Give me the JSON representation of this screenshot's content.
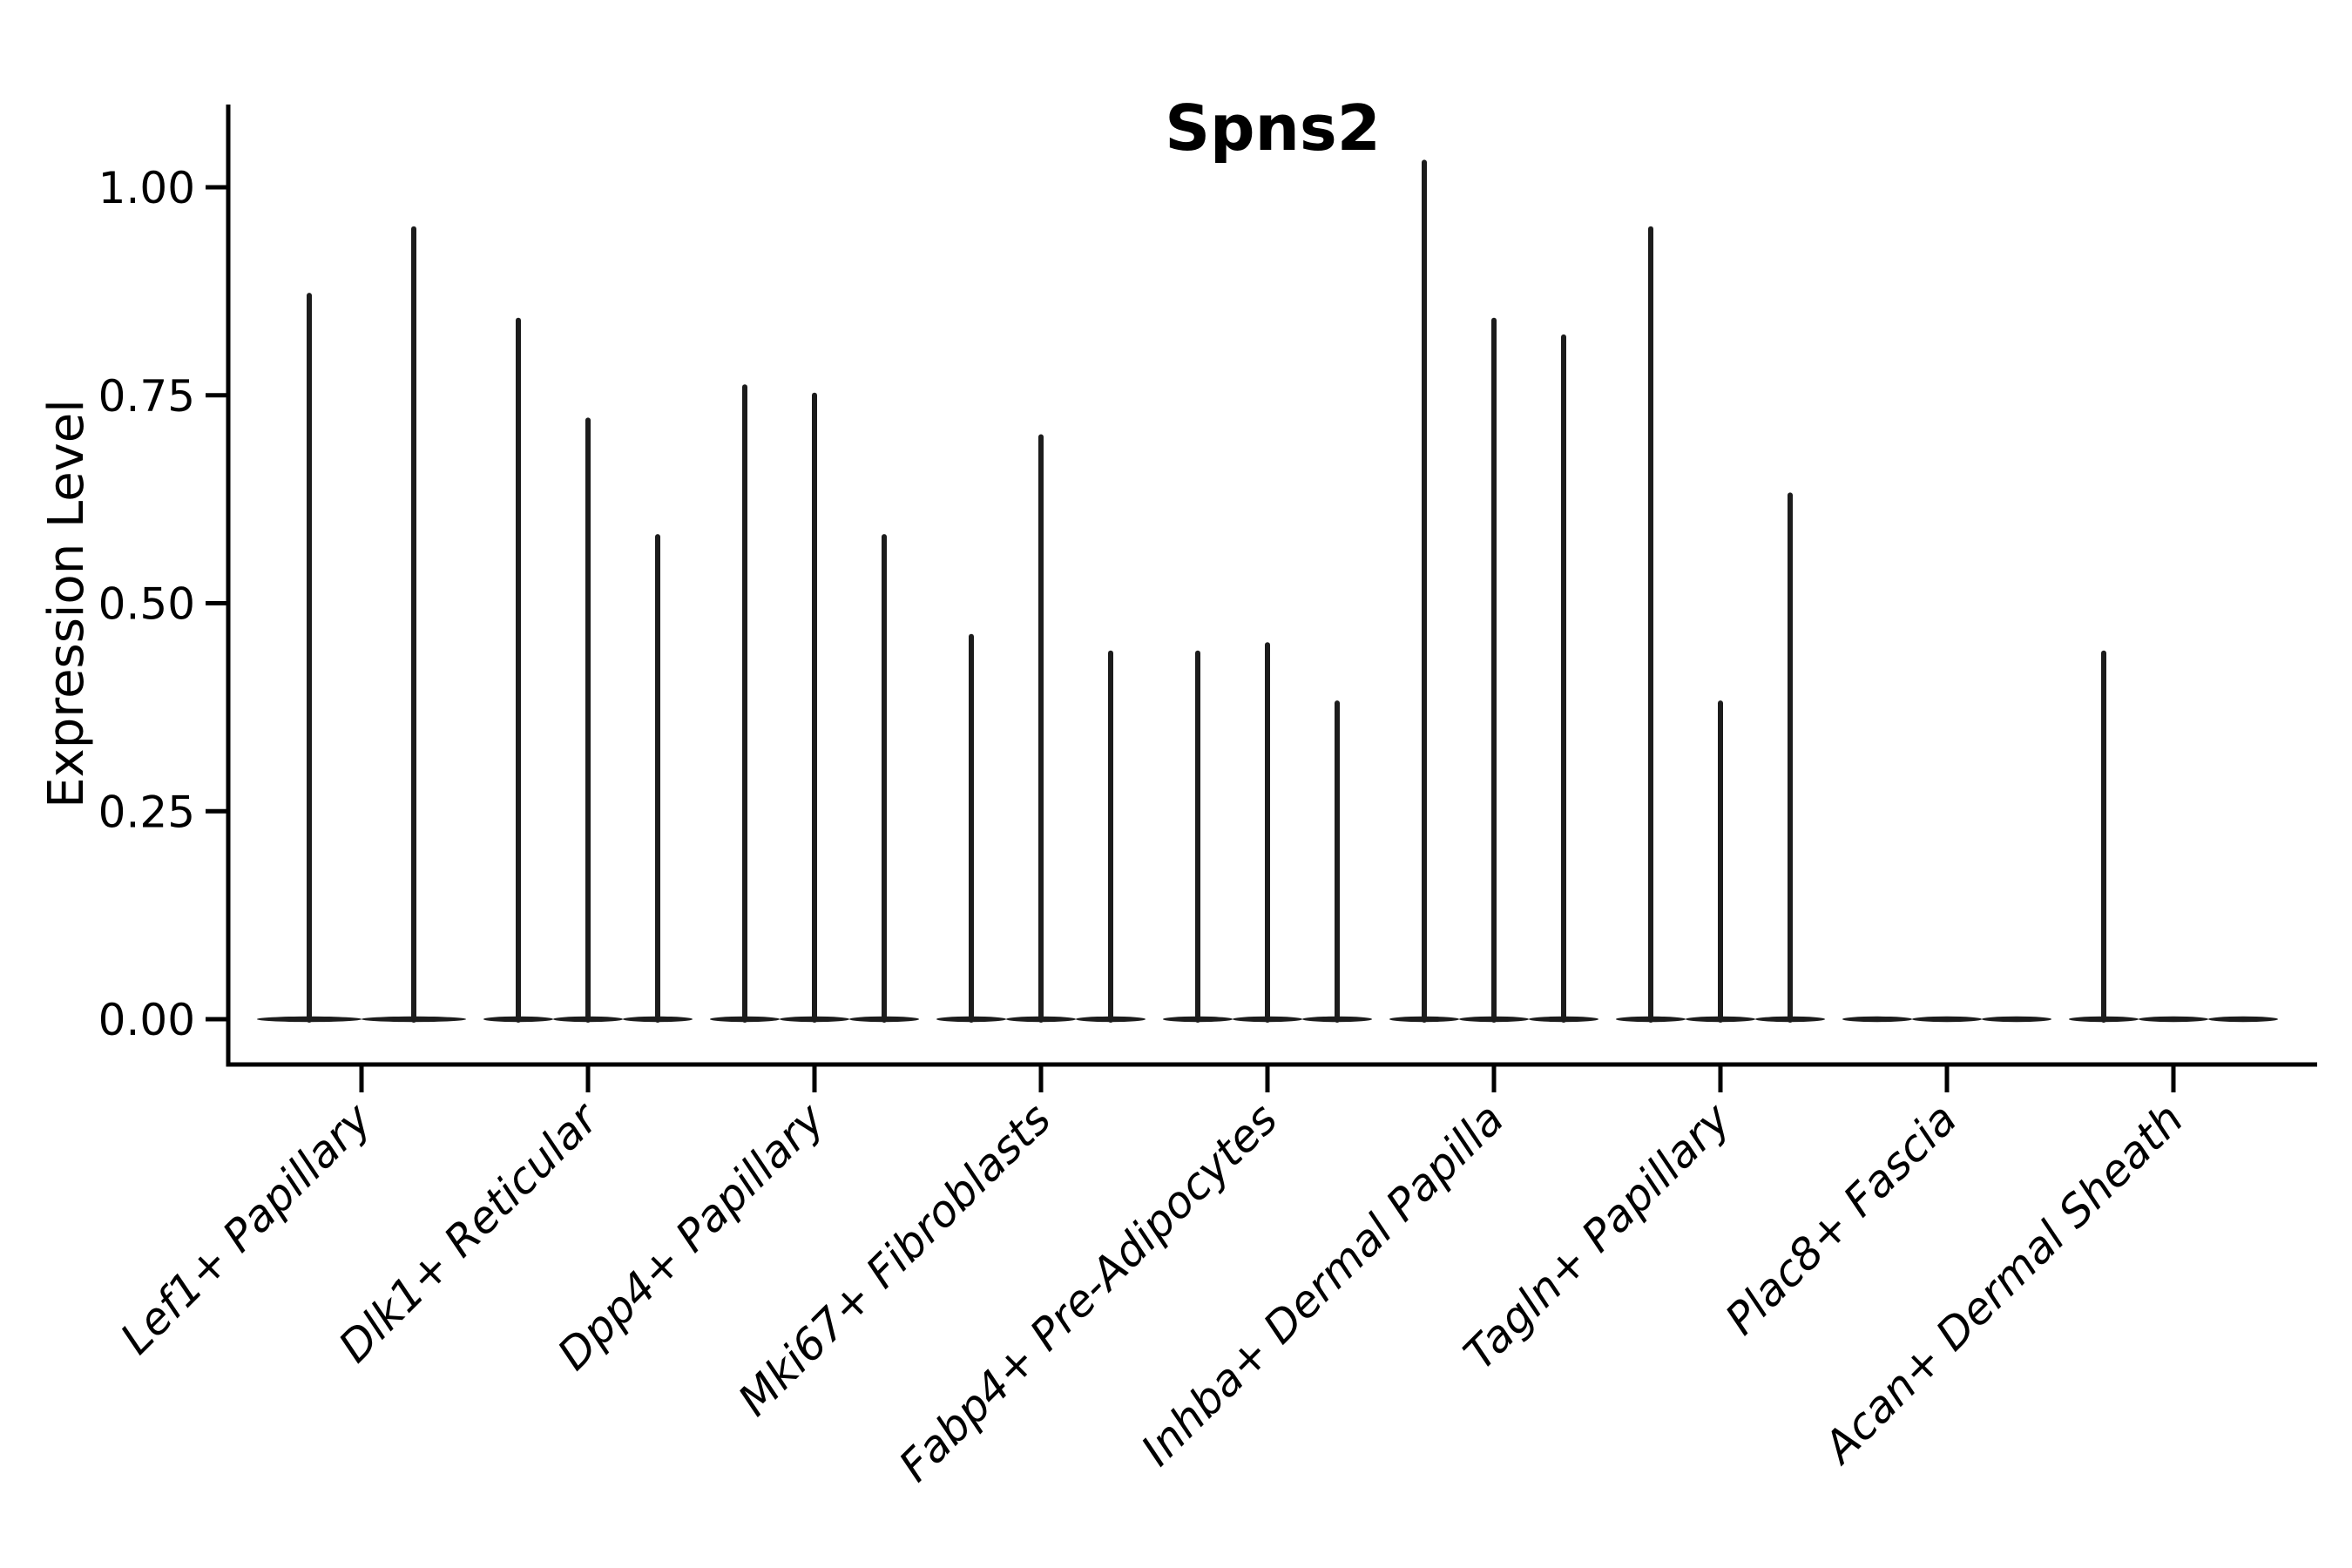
{
  "chart_data": {
    "type": "violin",
    "title": "Spns2",
    "xlabel": "",
    "ylabel": "Expression Level",
    "ylim": [
      0,
      1.09
    ],
    "yticks": [
      0.0,
      0.25,
      0.5,
      0.75,
      1.0
    ],
    "ytick_labels": [
      "0.00",
      "0.25",
      "0.50",
      "0.75",
      "1.00"
    ],
    "grid": false,
    "legend_position": "none",
    "line_color": "#1c1c1c",
    "spine_color": "#000000",
    "background_color": "#ffffff",
    "categories": [
      "Lef1+ Papillary",
      "Dlk1+ Reticular",
      "Dpp4+ Papillary",
      "Mki67+ Fibroblasts",
      "Fabp4+ Pre-Adipocytes",
      "Inhba+ Dermal Papilla",
      "Tagln+ Papillary",
      "Plac8+ Fascia",
      "Acan+ Dermal Sheath"
    ],
    "groups": [
      {
        "category": "Lef1+ Papillary",
        "violin_peaks": [
          0.87,
          0.95
        ]
      },
      {
        "category": "Dlk1+ Reticular",
        "violin_peaks": [
          0.84,
          0.72,
          0.58
        ]
      },
      {
        "category": "Dpp4+ Papillary",
        "violin_peaks": [
          0.76,
          0.75,
          0.58
        ]
      },
      {
        "category": "Mki67+ Fibroblasts",
        "violin_peaks": [
          0.46,
          0.7,
          0.44
        ]
      },
      {
        "category": "Fabp4+ Pre-Adipocytes",
        "violin_peaks": [
          0.44,
          0.45,
          0.38
        ]
      },
      {
        "category": "Inhba+ Dermal Papilla",
        "violin_peaks": [
          1.03,
          0.84,
          0.82
        ]
      },
      {
        "category": "Tagln+ Papillary",
        "violin_peaks": [
          0.95,
          0.38,
          0.63
        ]
      },
      {
        "category": "Plac8+ Fascia",
        "violin_peaks": [
          0,
          0,
          0
        ]
      },
      {
        "category": "Acan+ Dermal Sheath",
        "violin_peaks": [
          0.44,
          0,
          0
        ]
      }
    ]
  }
}
